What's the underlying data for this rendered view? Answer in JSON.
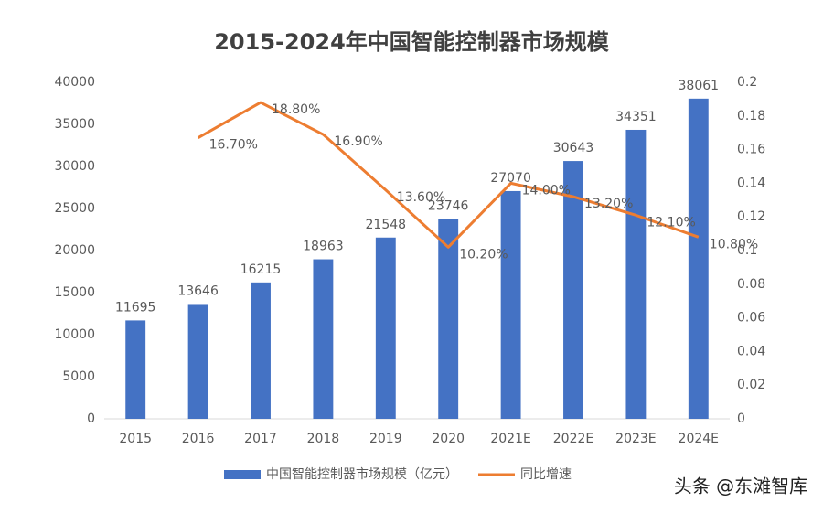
{
  "chart_data": {
    "type": "bar",
    "title": "2015-2024年中国智能控制器市场规模",
    "categories": [
      "2015",
      "2016",
      "2017",
      "2018",
      "2019",
      "2020",
      "2021E",
      "2022E",
      "2023E",
      "2024E"
    ],
    "series": [
      {
        "name": "中国智能控制器市场规模（亿元）",
        "type": "bar",
        "color": "#4472c4",
        "axis": "y",
        "values": [
          11695,
          13646,
          16215,
          18963,
          21548,
          23746,
          27070,
          30643,
          34351,
          38061
        ]
      },
      {
        "name": "同比增速",
        "type": "line",
        "color": "#ed7d31",
        "axis": "y2",
        "values": [
          null,
          0.167,
          0.188,
          0.169,
          0.136,
          0.102,
          0.14,
          0.132,
          0.121,
          0.108
        ],
        "value_labels": [
          null,
          "16.70%",
          "18.80%",
          "16.90%",
          "13.60%",
          "10.20%",
          "14.00%",
          "13.20%",
          "12.10%",
          "10.80%"
        ]
      }
    ],
    "ylim": [
      0,
      40000
    ],
    "yticks": [
      0,
      5000,
      10000,
      15000,
      20000,
      25000,
      30000,
      35000,
      40000
    ],
    "y2lim": [
      0,
      0.2
    ],
    "y2ticks": [
      0,
      0.02,
      0.04,
      0.06,
      0.08,
      0.1,
      0.12,
      0.14,
      0.16,
      0.18,
      0.2
    ],
    "grid": false,
    "legend": "bottom",
    "watermark": "头条 @东滩智库"
  }
}
